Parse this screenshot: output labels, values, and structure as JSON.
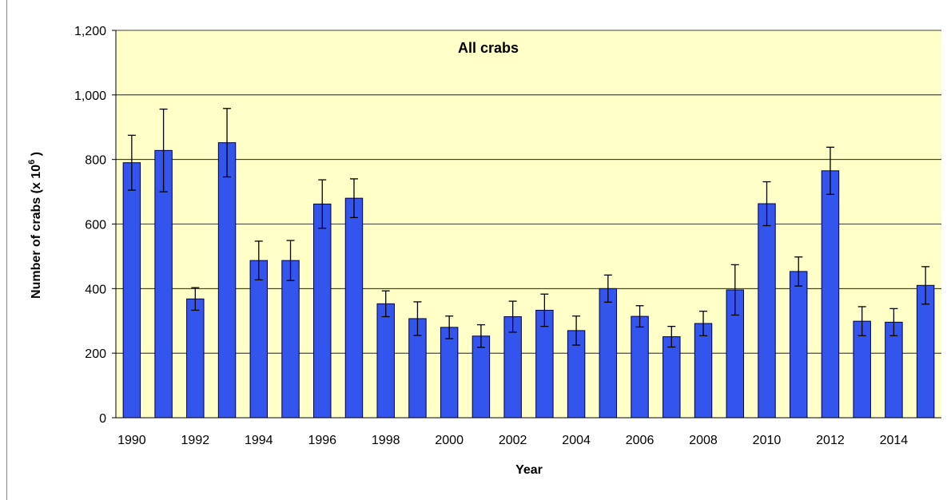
{
  "chart_data": {
    "type": "bar",
    "title": "All crabs",
    "x_label": "Year",
    "y_label": [
      "Number of crabs (x 10",
      "6",
      " )"
    ],
    "categories": [
      "1990",
      null,
      "1992",
      null,
      "1994",
      null,
      "1996",
      null,
      "1998",
      null,
      "2000",
      null,
      "2002",
      null,
      "2004",
      null,
      "2006",
      null,
      "2008",
      null,
      "2010",
      null,
      "2012",
      null,
      "2014",
      null
    ],
    "values": [
      790,
      828,
      368,
      852,
      487,
      487,
      662,
      680,
      353,
      307,
      280,
      253,
      313,
      333,
      270,
      400,
      314,
      251,
      292,
      396,
      663,
      453,
      765,
      299,
      296,
      410
    ],
    "errors": [
      85,
      128,
      35,
      106,
      60,
      62,
      75,
      60,
      40,
      52,
      35,
      35,
      48,
      50,
      45,
      42,
      33,
      32,
      38,
      78,
      68,
      45,
      73,
      45,
      42,
      58
    ],
    "color": "#3355ee",
    "ylim": [
      0,
      1200
    ],
    "yticks": [
      0,
      200,
      400,
      600,
      800,
      {
        "value": 1000,
        "label": "1,000"
      },
      {
        "value": 1200,
        "label": "1,200"
      }
    ],
    "grid": true
  }
}
